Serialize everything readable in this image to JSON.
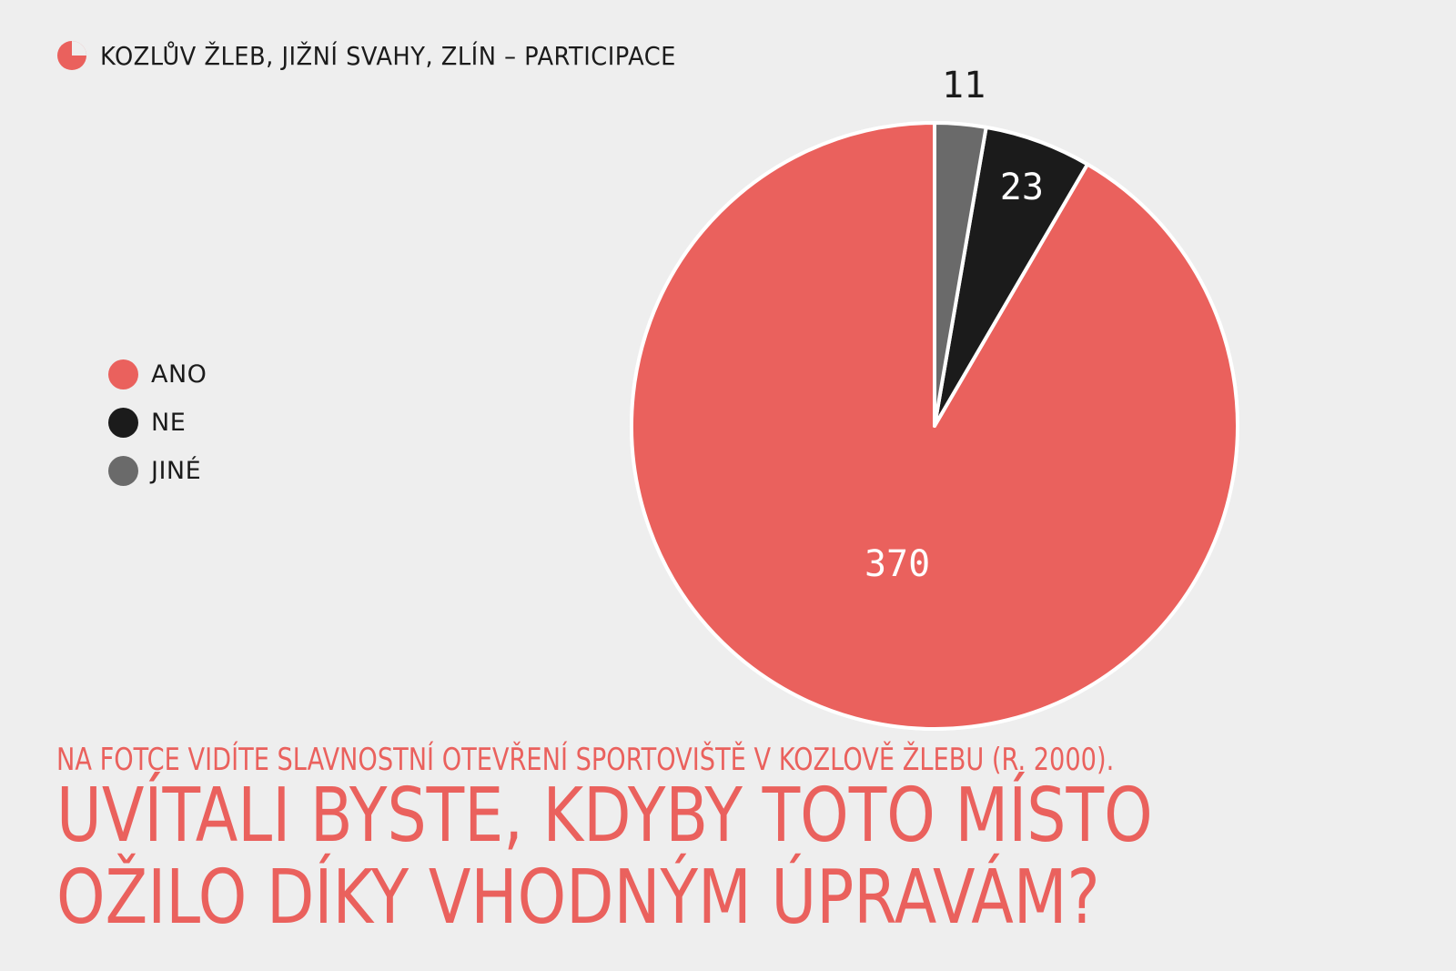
{
  "header": {
    "title": "KOZLŮV ŽLEB, JIŽNÍ SVAHY, ZLÍN – PARTICIPACE",
    "icon": "pie-chart-icon"
  },
  "colors": {
    "background": "#eeeeee",
    "accent": "#ea615d",
    "ano": "#ea615d",
    "ne": "#1b1b1b",
    "jine": "#6a6a6a",
    "text": "#1b1b1b"
  },
  "legend": {
    "items": [
      {
        "label": "ANO",
        "color": "#ea615d"
      },
      {
        "label": "NE",
        "color": "#1b1b1b"
      },
      {
        "label": "JINÉ",
        "color": "#6a6a6a"
      }
    ]
  },
  "chart_data": {
    "type": "pie",
    "title": "",
    "categories": [
      "ANO",
      "NE",
      "JINÉ"
    ],
    "values": [
      370,
      23,
      11
    ],
    "data_labels": [
      "370",
      "23",
      "11"
    ],
    "colors": [
      "#ea615d",
      "#1b1b1b",
      "#6a6a6a"
    ],
    "direction": "counter-clockwise from top",
    "legend_position": "left"
  },
  "footer": {
    "subtitle": "NA FOTCE VIDÍTE SLAVNOSTNÍ OTEVŘENÍ SPORTOVIŠTĚ V KOZLOVĚ ŽLEBU (R. 2000).",
    "question_line1": "UVÍTALI BYSTE, KDYBY TOTO MÍSTO",
    "question_line2": "OŽILO DÍKY VHODNÝM ÚPRAVÁM?"
  }
}
